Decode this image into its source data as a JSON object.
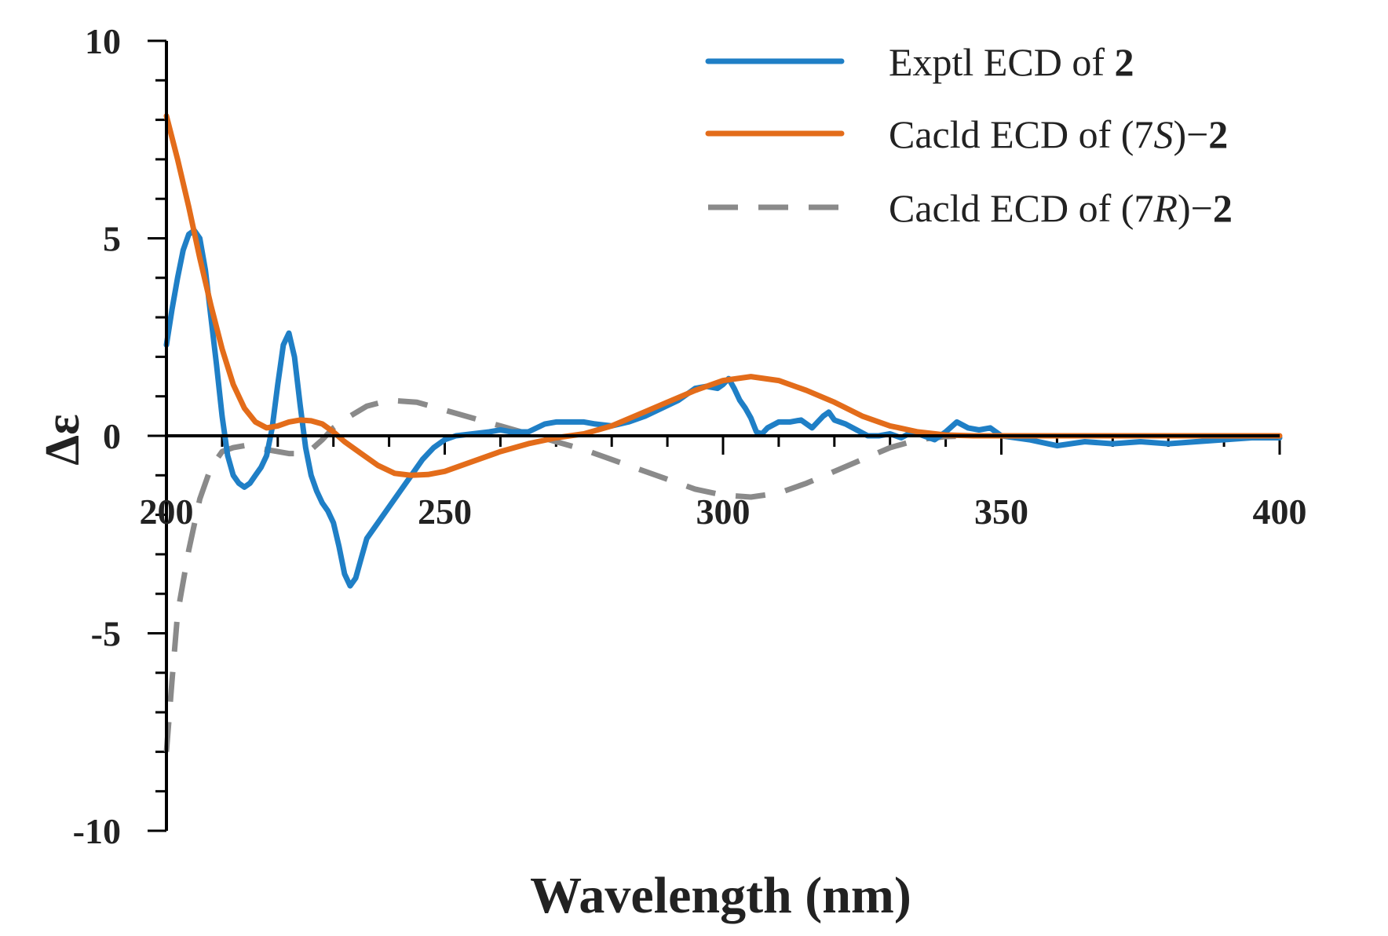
{
  "chart_data": {
    "type": "line",
    "title": "",
    "xlabel": "Wavelength (nm)",
    "ylabel": "Δε",
    "xlim": [
      200,
      400
    ],
    "ylim": [
      -10,
      10
    ],
    "x_ticks": [
      200,
      250,
      300,
      350,
      400
    ],
    "y_ticks": [
      10,
      5,
      0,
      -5,
      -10
    ],
    "x_tick_labels": [
      "200",
      "250",
      "300",
      "350",
      "400"
    ],
    "y_tick_labels": [
      "10",
      "5",
      "0",
      "-5",
      "-10"
    ],
    "grid": false,
    "legend_position": "top-right",
    "legend": [
      {
        "prefix": "Exptl ECD of ",
        "config": "",
        "suffix": "",
        "compound": "2"
      },
      {
        "prefix": "Cacld ECD of (7",
        "config": "S",
        "suffix": ")−",
        "compound": "2"
      },
      {
        "prefix": "Cacld ECD of (7",
        "config": "R",
        "suffix": ")−",
        "compound": "2"
      }
    ],
    "series": [
      {
        "name": "Exptl ECD of 2",
        "color": "#1f7fc6",
        "dash": "solid",
        "points": [
          [
            200,
            2.3
          ],
          [
            201,
            3.2
          ],
          [
            202,
            4.0
          ],
          [
            203,
            4.7
          ],
          [
            204,
            5.1
          ],
          [
            205,
            5.2
          ],
          [
            206,
            5.0
          ],
          [
            207,
            4.2
          ],
          [
            208,
            3.0
          ],
          [
            209,
            1.8
          ],
          [
            210,
            0.5
          ],
          [
            211,
            -0.5
          ],
          [
            212,
            -1.0
          ],
          [
            213,
            -1.2
          ],
          [
            214,
            -1.3
          ],
          [
            215,
            -1.2
          ],
          [
            216,
            -1.0
          ],
          [
            217,
            -0.8
          ],
          [
            218,
            -0.5
          ],
          [
            219,
            0.2
          ],
          [
            220,
            1.3
          ],
          [
            221,
            2.3
          ],
          [
            222,
            2.6
          ],
          [
            223,
            2.0
          ],
          [
            224,
            0.8
          ],
          [
            225,
            -0.3
          ],
          [
            226,
            -1.0
          ],
          [
            227,
            -1.4
          ],
          [
            228,
            -1.7
          ],
          [
            229,
            -1.9
          ],
          [
            230,
            -2.2
          ],
          [
            231,
            -2.8
          ],
          [
            232,
            -3.5
          ],
          [
            233,
            -3.8
          ],
          [
            234,
            -3.6
          ],
          [
            235,
            -3.1
          ],
          [
            236,
            -2.6
          ],
          [
            238,
            -2.2
          ],
          [
            240,
            -1.8
          ],
          [
            242,
            -1.4
          ],
          [
            244,
            -1.0
          ],
          [
            246,
            -0.6
          ],
          [
            248,
            -0.3
          ],
          [
            250,
            -0.1
          ],
          [
            252,
            0.0
          ],
          [
            255,
            0.05
          ],
          [
            258,
            0.1
          ],
          [
            260,
            0.15
          ],
          [
            262,
            0.1
          ],
          [
            265,
            0.1
          ],
          [
            268,
            0.3
          ],
          [
            270,
            0.35
          ],
          [
            273,
            0.35
          ],
          [
            275,
            0.35
          ],
          [
            277,
            0.3
          ],
          [
            280,
            0.25
          ],
          [
            283,
            0.35
          ],
          [
            286,
            0.5
          ],
          [
            289,
            0.7
          ],
          [
            292,
            0.9
          ],
          [
            295,
            1.2
          ],
          [
            297,
            1.25
          ],
          [
            299,
            1.2
          ],
          [
            300,
            1.3
          ],
          [
            301,
            1.45
          ],
          [
            302,
            1.2
          ],
          [
            303,
            0.9
          ],
          [
            304,
            0.7
          ],
          [
            305,
            0.45
          ],
          [
            306,
            0.1
          ],
          [
            307,
            0.05
          ],
          [
            308,
            0.2
          ],
          [
            310,
            0.35
          ],
          [
            312,
            0.35
          ],
          [
            314,
            0.4
          ],
          [
            316,
            0.2
          ],
          [
            318,
            0.5
          ],
          [
            319,
            0.6
          ],
          [
            320,
            0.4
          ],
          [
            322,
            0.3
          ],
          [
            324,
            0.15
          ],
          [
            326,
            0.0
          ],
          [
            328,
            0.0
          ],
          [
            330,
            0.05
          ],
          [
            332,
            -0.05
          ],
          [
            334,
            0.1
          ],
          [
            336,
            0.0
          ],
          [
            338,
            -0.1
          ],
          [
            340,
            0.1
          ],
          [
            342,
            0.35
          ],
          [
            344,
            0.2
          ],
          [
            346,
            0.15
          ],
          [
            348,
            0.2
          ],
          [
            350,
            0.0
          ],
          [
            355,
            -0.1
          ],
          [
            360,
            -0.25
          ],
          [
            365,
            -0.15
          ],
          [
            370,
            -0.2
          ],
          [
            375,
            -0.15
          ],
          [
            380,
            -0.2
          ],
          [
            385,
            -0.15
          ],
          [
            390,
            -0.1
          ],
          [
            395,
            -0.05
          ],
          [
            400,
            -0.05
          ]
        ]
      },
      {
        "name": "Cacld ECD of (7S)-2",
        "color": "#e36c1a",
        "dash": "solid",
        "points": [
          [
            200,
            8.1
          ],
          [
            202,
            7.0
          ],
          [
            204,
            5.8
          ],
          [
            206,
            4.5
          ],
          [
            208,
            3.3
          ],
          [
            210,
            2.2
          ],
          [
            212,
            1.3
          ],
          [
            214,
            0.7
          ],
          [
            216,
            0.35
          ],
          [
            218,
            0.2
          ],
          [
            220,
            0.25
          ],
          [
            222,
            0.35
          ],
          [
            224,
            0.4
          ],
          [
            226,
            0.38
          ],
          [
            228,
            0.3
          ],
          [
            230,
            0.1
          ],
          [
            232,
            -0.15
          ],
          [
            235,
            -0.45
          ],
          [
            238,
            -0.75
          ],
          [
            241,
            -0.95
          ],
          [
            244,
            -1.0
          ],
          [
            247,
            -0.98
          ],
          [
            250,
            -0.9
          ],
          [
            255,
            -0.65
          ],
          [
            260,
            -0.4
          ],
          [
            265,
            -0.2
          ],
          [
            270,
            -0.05
          ],
          [
            275,
            0.05
          ],
          [
            280,
            0.25
          ],
          [
            285,
            0.55
          ],
          [
            290,
            0.85
          ],
          [
            295,
            1.15
          ],
          [
            300,
            1.4
          ],
          [
            305,
            1.5
          ],
          [
            310,
            1.4
          ],
          [
            315,
            1.15
          ],
          [
            320,
            0.85
          ],
          [
            325,
            0.5
          ],
          [
            330,
            0.25
          ],
          [
            335,
            0.1
          ],
          [
            340,
            0.02
          ],
          [
            345,
            0.0
          ],
          [
            350,
            0.0
          ],
          [
            360,
            0.0
          ],
          [
            370,
            0.0
          ],
          [
            380,
            0.0
          ],
          [
            390,
            0.0
          ],
          [
            400,
            0.0
          ]
        ]
      },
      {
        "name": "Cacld ECD of (7R)-2",
        "color": "#8a8a8a",
        "dash": "dashed",
        "points": [
          [
            200,
            -8.0
          ],
          [
            201,
            -6.2
          ],
          [
            202,
            -4.5
          ],
          [
            204,
            -2.9
          ],
          [
            206,
            -1.6
          ],
          [
            208,
            -0.8
          ],
          [
            210,
            -0.4
          ],
          [
            212,
            -0.3
          ],
          [
            214,
            -0.25
          ],
          [
            216,
            -0.3
          ],
          [
            218,
            -0.35
          ],
          [
            220,
            -0.4
          ],
          [
            222,
            -0.45
          ],
          [
            224,
            -0.45
          ],
          [
            226,
            -0.35
          ],
          [
            228,
            -0.1
          ],
          [
            230,
            0.2
          ],
          [
            233,
            0.5
          ],
          [
            236,
            0.75
          ],
          [
            240,
            0.9
          ],
          [
            245,
            0.85
          ],
          [
            250,
            0.65
          ],
          [
            255,
            0.45
          ],
          [
            260,
            0.25
          ],
          [
            265,
            0.05
          ],
          [
            270,
            -0.15
          ],
          [
            275,
            -0.35
          ],
          [
            280,
            -0.6
          ],
          [
            285,
            -0.85
          ],
          [
            290,
            -1.1
          ],
          [
            295,
            -1.35
          ],
          [
            300,
            -1.5
          ],
          [
            305,
            -1.55
          ],
          [
            310,
            -1.45
          ],
          [
            315,
            -1.2
          ],
          [
            320,
            -0.9
          ],
          [
            325,
            -0.6
          ],
          [
            330,
            -0.3
          ],
          [
            335,
            -0.1
          ],
          [
            340,
            -0.02
          ],
          [
            345,
            0.0
          ],
          [
            350,
            0.0
          ],
          [
            360,
            0.0
          ],
          [
            370,
            0.0
          ],
          [
            380,
            0.0
          ],
          [
            390,
            0.0
          ],
          [
            400,
            0.0
          ]
        ]
      }
    ]
  }
}
